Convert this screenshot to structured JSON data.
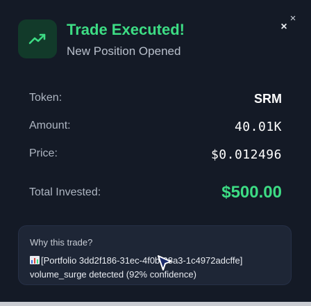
{
  "notification": {
    "title": "Trade Executed!",
    "subtitle": "New Position Opened",
    "icon": "trending-up-icon",
    "accent_color": "#3ddc84"
  },
  "details": [
    {
      "label": "Token:",
      "value": "SRM"
    },
    {
      "label": "Amount:",
      "value": "40.01K"
    },
    {
      "label": "Price:",
      "value": "$0.012496"
    },
    {
      "label": "Total Invested:",
      "value": "$500.00"
    }
  ],
  "reason": {
    "title": "Why this trade?",
    "text": "[Portfolio 3dd2f186-31ec-4f0b-98a3-1c4972adcffe] volume_surge detected (92% confidence)"
  },
  "close_icon": "×"
}
